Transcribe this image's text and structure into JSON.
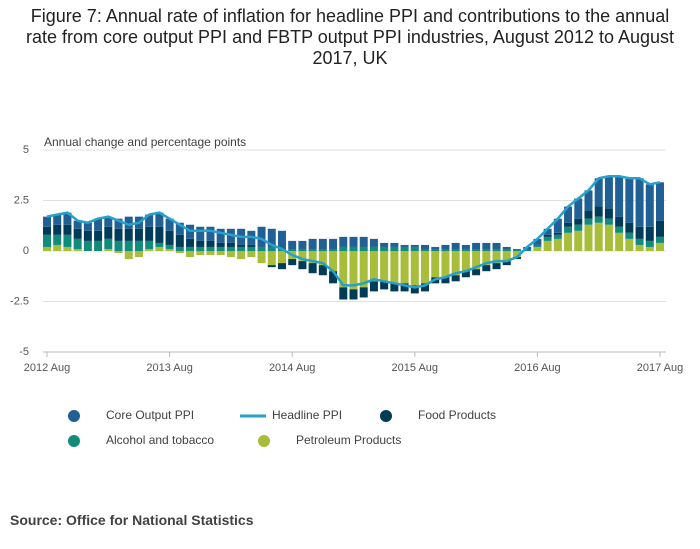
{
  "chart_data": {
    "type": "bar",
    "stacked": true,
    "title": "Figure 7: Annual rate of inflation for headline PPI and contributions to the annual rate from core output PPI and FBTP output PPI industries, August 2012 to August 2017, UK",
    "y_label": "Annual change and percentage points",
    "source": "Source: Office for National Statistics",
    "categories": [
      "2012 Aug",
      null,
      null,
      null,
      null,
      null,
      null,
      null,
      null,
      null,
      null,
      null,
      "2013 Aug",
      null,
      null,
      null,
      null,
      null,
      null,
      null,
      null,
      null,
      null,
      null,
      "2014 Aug",
      null,
      null,
      null,
      null,
      null,
      null,
      null,
      null,
      null,
      null,
      null,
      "2015 Aug",
      null,
      null,
      null,
      null,
      null,
      null,
      null,
      null,
      null,
      null,
      null,
      "2016 Aug",
      null,
      null,
      null,
      null,
      null,
      null,
      null,
      null,
      null,
      null,
      null,
      "2017 Aug"
    ],
    "ylim": [
      -5,
      5
    ],
    "yticks": [
      -5,
      -2.5,
      0,
      2.5,
      5
    ],
    "grid": true,
    "series": [
      {
        "name": "Core Output PPI",
        "color": "#206095",
        "values": [
          0.5,
          0.5,
          0.6,
          0.4,
          0.4,
          0.6,
          0.5,
          0.5,
          0.6,
          0.6,
          0.6,
          0.7,
          0.6,
          0.6,
          0.7,
          0.7,
          0.7,
          0.7,
          0.7,
          0.8,
          0.7,
          1.0,
          0.9,
          0.9,
          0.4,
          0.4,
          0.5,
          0.5,
          0.5,
          0.5,
          0.5,
          0.5,
          0.4,
          0.2,
          0.2,
          0.1,
          0.1,
          0.2,
          0.1,
          0.2,
          0.3,
          0.2,
          0.3,
          0.3,
          0.3,
          0.1,
          0.0,
          0.1,
          0.3,
          0.3,
          0.7,
          0.8,
          1.0,
          1.0,
          1.4,
          1.6,
          2.0,
          2.2,
          2.4,
          2.1,
          1.9
        ]
      },
      {
        "name": "Headline PPI",
        "type": "line",
        "color": "#27a0cc",
        "values": [
          1.7,
          1.8,
          1.9,
          1.5,
          1.4,
          1.6,
          1.7,
          1.5,
          1.3,
          1.4,
          1.8,
          1.9,
          1.6,
          1.3,
          1.0,
          1.0,
          1.0,
          0.9,
          0.8,
          0.7,
          0.7,
          0.6,
          0.3,
          0.1,
          -0.2,
          -0.4,
          -0.5,
          -0.6,
          -1.0,
          -1.7,
          -1.7,
          -1.6,
          -1.4,
          -1.5,
          -1.6,
          -1.7,
          -1.8,
          -1.7,
          -1.4,
          -1.3,
          -1.1,
          -1.0,
          -0.8,
          -0.6,
          -0.5,
          -0.5,
          -0.3,
          0.2,
          0.6,
          1.1,
          1.6,
          2.2,
          2.6,
          3.0,
          3.6,
          3.7,
          3.7,
          3.6,
          3.6,
          3.3,
          3.4
        ]
      },
      {
        "name": "Food Products",
        "color": "#003c57",
        "values": [
          0.4,
          0.5,
          0.5,
          0.5,
          0.5,
          0.5,
          0.6,
          0.6,
          0.6,
          0.6,
          0.7,
          0.8,
          0.7,
          0.6,
          0.4,
          0.3,
          0.3,
          0.2,
          0.2,
          0.1,
          0.1,
          0.0,
          -0.1,
          -0.3,
          -0.3,
          -0.4,
          -0.5,
          -0.5,
          -0.6,
          -0.6,
          -0.5,
          -0.5,
          -0.5,
          -0.4,
          -0.4,
          -0.4,
          -0.4,
          -0.4,
          -0.3,
          -0.3,
          -0.3,
          -0.3,
          -0.3,
          -0.3,
          -0.3,
          -0.2,
          -0.1,
          0.0,
          0.0,
          0.1,
          0.1,
          0.2,
          0.3,
          0.4,
          0.5,
          0.5,
          0.5,
          0.5,
          0.6,
          0.7,
          0.8
        ]
      },
      {
        "name": "Alcohol and tobacco",
        "color": "#118c7b",
        "values": [
          0.6,
          0.5,
          0.6,
          0.5,
          0.5,
          0.5,
          0.5,
          0.5,
          0.5,
          0.5,
          0.4,
          0.2,
          0.2,
          0.2,
          0.2,
          0.2,
          0.2,
          0.2,
          0.2,
          0.2,
          0.2,
          0.2,
          0.2,
          0.1,
          0.1,
          0.1,
          0.1,
          0.1,
          0.1,
          0.2,
          0.2,
          0.2,
          0.2,
          0.2,
          0.2,
          0.2,
          0.2,
          0.1,
          0.1,
          0.1,
          0.1,
          0.1,
          0.1,
          0.1,
          0.1,
          0.1,
          0.1,
          0.1,
          0.1,
          0.2,
          0.2,
          0.3,
          0.3,
          0.3,
          0.3,
          0.3,
          0.3,
          0.3,
          0.3,
          0.3,
          0.3
        ]
      },
      {
        "name": "Petroleum Products",
        "color": "#a8bd3a",
        "values": [
          0.2,
          0.3,
          0.2,
          0.1,
          0.0,
          0.0,
          0.1,
          -0.1,
          -0.4,
          -0.3,
          0.1,
          0.2,
          0.1,
          -0.1,
          -0.3,
          -0.2,
          -0.2,
          -0.2,
          -0.3,
          -0.4,
          -0.3,
          -0.6,
          -0.7,
          -0.6,
          -0.4,
          -0.5,
          -0.6,
          -0.7,
          -1.0,
          -1.8,
          -1.9,
          -1.8,
          -1.5,
          -1.5,
          -1.6,
          -1.6,
          -1.7,
          -1.6,
          -1.3,
          -1.3,
          -1.2,
          -1.0,
          -0.9,
          -0.7,
          -0.6,
          -0.5,
          -0.3,
          0.0,
          0.2,
          0.5,
          0.6,
          0.9,
          1.0,
          1.3,
          1.4,
          1.3,
          0.9,
          0.6,
          0.3,
          0.2,
          0.4
        ]
      }
    ]
  }
}
